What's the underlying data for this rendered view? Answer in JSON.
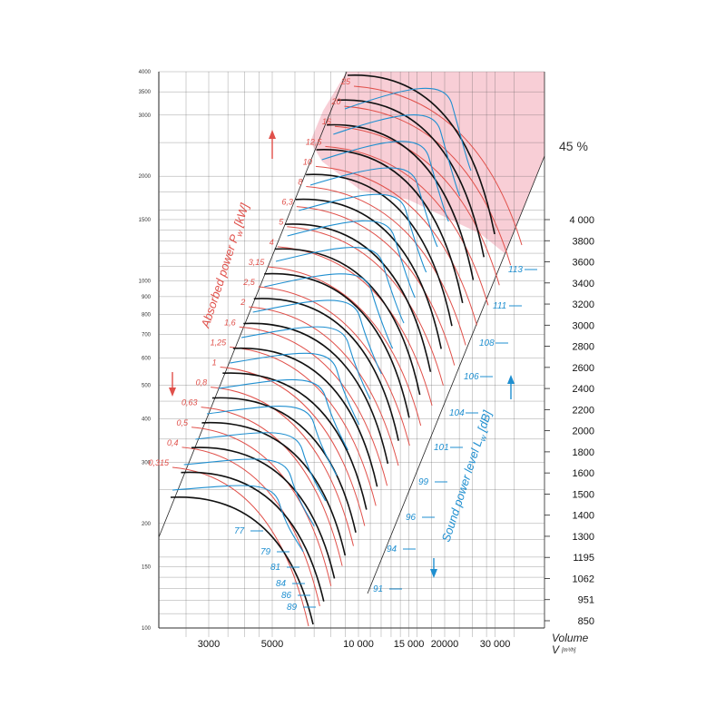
{
  "chart_data": {
    "type": "line",
    "x_axis": {
      "label": "Volume",
      "sublabel": "V",
      "unit": "[m³/h]",
      "scale": "log",
      "range": [
        2200,
        40000
      ],
      "ticks": [
        "3000",
        "5000",
        "10 000",
        "15 000",
        "20000",
        "30 000"
      ]
    },
    "y_axis_left": {
      "scale": "log",
      "range": [
        100,
        4000
      ],
      "ticks": [
        "4000",
        "3500",
        "3000",
        "2000",
        "1500",
        "1000",
        "900",
        "800",
        "700",
        "600",
        "500",
        "400",
        "300",
        "200",
        "150",
        "100"
      ]
    },
    "y_axis_right": {
      "ticks": [
        "4 000",
        "3800",
        "3600",
        "3400",
        "3200",
        "3000",
        "2800",
        "2600",
        "2400",
        "2200",
        "2000",
        "1800",
        "1600",
        "1500",
        "1400",
        "1300",
        "1195",
        "1062",
        "951",
        "850"
      ]
    },
    "efficiency_label": "45 %",
    "absorbed_power": {
      "title": "Absorbed power  P",
      "sub": "w",
      "unit": " [kW]",
      "levels": [
        "0,315",
        "0,4",
        "0,5",
        "0,63",
        "0,8",
        "1",
        "1,25",
        "1,6",
        "2",
        "2,5",
        "3,15",
        "4",
        "5",
        "6,3",
        "8",
        "10",
        "12,5",
        "16",
        "20",
        "25"
      ]
    },
    "sound_power": {
      "title": "Sound power level L",
      "sub": "w",
      "unit": " [dB]",
      "levels": [
        "77",
        "79",
        "81",
        "84",
        "86",
        "89",
        "91",
        "94",
        "96",
        "99",
        "101",
        "104",
        "106",
        "108",
        "111",
        "113"
      ]
    },
    "colors": {
      "speed_curve": "#111111",
      "sound_curve": "#1f8fd0",
      "power_curve": "#e0504a",
      "shaded_region": "#f7c6cf",
      "grid": "#555555"
    }
  }
}
